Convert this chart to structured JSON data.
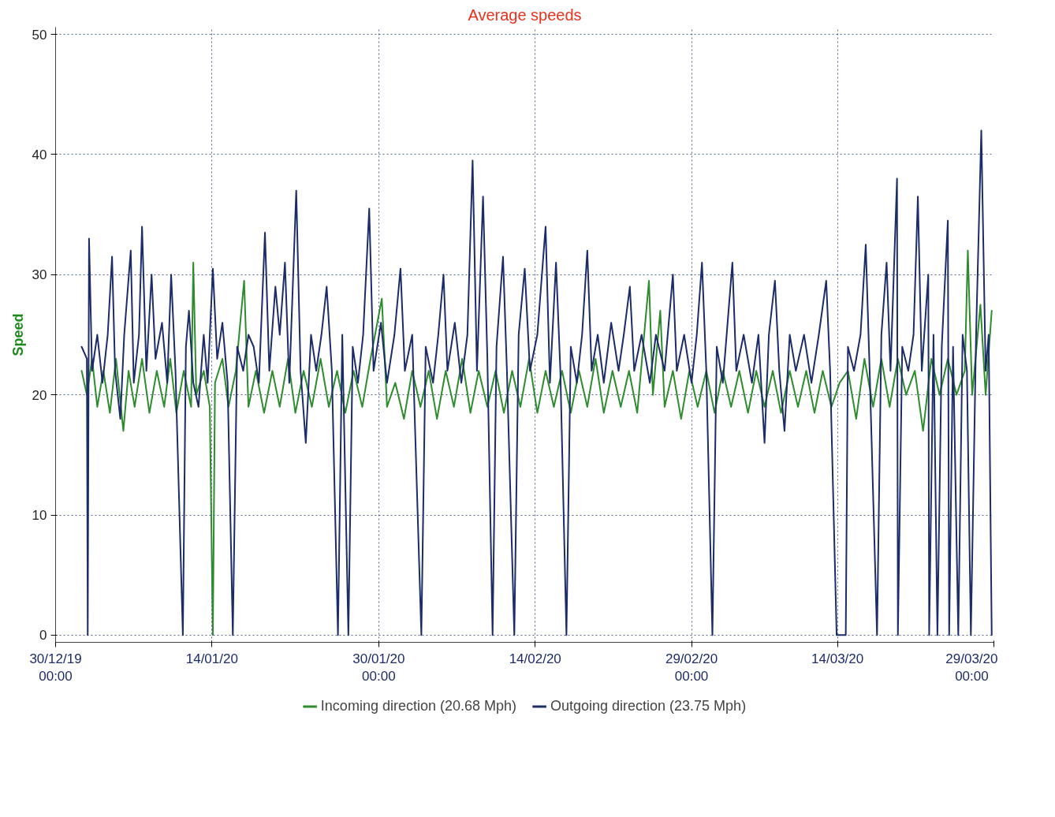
{
  "chart_data": {
    "type": "line",
    "title": "Average speeds",
    "ylabel": "Speed",
    "xlim": [
      "2019-12-30",
      "2020-03-29"
    ],
    "xticks": [
      {
        "value": "2019-12-30",
        "label": "30/12/19\n00:00"
      },
      {
        "value": "2020-01-14",
        "label": "14/01/20"
      },
      {
        "value": "2020-01-30",
        "label": "30/01/20\n00:00"
      },
      {
        "value": "2020-02-14",
        "label": "14/02/20"
      },
      {
        "value": "2020-02-29",
        "label": "29/02/20\n00:00"
      },
      {
        "value": "2020-03-14",
        "label": "14/03/20"
      },
      {
        "value": "2020-03-29",
        "label": "29/03/20\n00:00"
      }
    ],
    "ylim": [
      -0.6,
      50.6
    ],
    "yticks": [
      0,
      10,
      20,
      30,
      40,
      50
    ],
    "grid": true,
    "legend": "bottom",
    "line_style": "solid",
    "marker": "none",
    "series": [
      {
        "name": "Incoming direction (20.68 Mph)",
        "color": "#2e8b2e",
        "x": [
          "2020-01-01T12:00",
          "2020-01-02T00:00",
          "2020-01-02T12:00",
          "2020-01-03T00:00",
          "2020-01-03T14:00",
          "2020-01-04T05:00",
          "2020-01-04T19:00",
          "2020-01-05T12:00",
          "2020-01-06T00:00",
          "2020-01-06T14:00",
          "2020-01-07T07:00",
          "2020-01-08T00:00",
          "2020-01-08T17:00",
          "2020-01-09T10:00",
          "2020-01-10T00:00",
          "2020-01-10T14:00",
          "2020-01-11T07:00",
          "2020-01-12T00:00",
          "2020-01-12T05:00",
          "2020-01-12T12:00",
          "2020-01-13T05:00",
          "2020-01-13T19:00",
          "2020-01-14T02:00",
          "2020-01-14T07:00",
          "2020-01-15T00:00",
          "2020-01-15T14:00",
          "2020-01-16T07:00",
          "2020-01-17T02:00",
          "2020-01-17T12:00",
          "2020-01-18T05:00",
          "2020-01-19T00:00",
          "2020-01-19T19:00",
          "2020-01-20T12:00",
          "2020-01-21T07:00",
          "2020-01-22T00:00",
          "2020-01-22T19:00",
          "2020-01-23T14:00",
          "2020-01-24T10:00",
          "2020-01-25T05:00",
          "2020-01-26T00:00",
          "2020-01-26T19:00",
          "2020-01-27T14:00",
          "2020-01-28T10:00",
          "2020-01-29T05:00",
          "2020-01-30T07:00",
          "2020-01-30T19:00",
          "2020-01-31T14:00",
          "2020-02-01T10:00",
          "2020-02-02T05:00",
          "2020-02-03T00:00",
          "2020-02-03T19:00",
          "2020-02-04T14:00",
          "2020-02-05T10:00",
          "2020-02-06T05:00",
          "2020-02-07T00:00",
          "2020-02-07T19:00",
          "2020-02-08T14:00",
          "2020-02-09T10:00",
          "2020-02-10T05:00",
          "2020-02-11T00:00",
          "2020-02-11T19:00",
          "2020-02-12T14:00",
          "2020-02-13T10:00",
          "2020-02-14T05:00",
          "2020-02-15T00:00",
          "2020-02-15T19:00",
          "2020-02-16T14:00",
          "2020-02-17T10:00",
          "2020-02-18T05:00",
          "2020-02-19T00:00",
          "2020-02-19T19:00",
          "2020-02-20T14:00",
          "2020-02-21T10:00",
          "2020-02-22T05:00",
          "2020-02-23T00:00",
          "2020-02-23T19:00",
          "2020-02-24T22:00",
          "2020-02-25T07:00",
          "2020-02-26T00:00",
          "2020-02-26T10:00",
          "2020-02-27T05:00",
          "2020-02-28T00:00",
          "2020-02-28T19:00",
          "2020-02-29T14:00",
          "2020-03-01T10:00",
          "2020-03-02T05:00",
          "2020-03-03T00:00",
          "2020-03-03T19:00",
          "2020-03-04T14:00",
          "2020-03-05T10:00",
          "2020-03-06T05:00",
          "2020-03-07T00:00",
          "2020-03-07T19:00",
          "2020-03-08T14:00",
          "2020-03-09T10:00",
          "2020-03-10T05:00",
          "2020-03-11T00:00",
          "2020-03-11T19:00",
          "2020-03-12T14:00",
          "2020-03-13T10:00",
          "2020-03-14T05:00",
          "2020-03-15T00:00",
          "2020-03-15T19:00",
          "2020-03-16T14:00",
          "2020-03-17T10:00",
          "2020-03-18T05:00",
          "2020-03-19T00:00",
          "2020-03-19T19:00",
          "2020-03-20T14:00",
          "2020-03-21T10:00",
          "2020-03-22T05:00",
          "2020-03-23T00:00",
          "2020-03-23T19:00",
          "2020-03-24T14:00",
          "2020-03-25T10:00",
          "2020-03-26T05:00",
          "2020-03-26T12:00",
          "2020-03-26T22:00",
          "2020-03-27T17:00",
          "2020-03-28T05:00",
          "2020-03-28T19:00"
        ],
        "values": [
          22,
          20,
          23,
          19,
          22,
          18.5,
          23,
          17,
          22,
          19,
          23,
          18.5,
          22,
          19,
          23,
          18.5,
          22,
          19,
          31,
          20,
          22,
          19,
          0,
          21,
          23,
          19,
          22,
          29.5,
          19,
          22,
          18.5,
          22,
          19,
          23,
          18.5,
          22,
          19,
          23,
          19,
          22,
          18.5,
          22,
          19,
          23,
          28,
          19,
          21,
          18,
          22,
          19,
          22,
          18,
          22,
          19,
          23,
          18.5,
          22,
          19,
          22,
          18.5,
          22,
          19,
          23,
          18.5,
          22,
          19,
          22,
          18.5,
          22,
          19,
          23,
          18.5,
          22,
          19,
          22,
          18.5,
          29.5,
          20,
          27,
          19,
          22,
          18,
          22,
          19,
          22,
          18.5,
          22,
          19,
          22,
          18.5,
          22,
          19,
          22,
          18.5,
          22,
          19,
          22,
          18.5,
          22,
          19,
          21,
          22,
          18,
          23,
          19,
          23,
          19,
          23,
          20,
          22,
          17,
          23,
          20,
          23,
          20,
          22,
          32,
          20,
          27.5,
          20,
          27
        ]
      },
      {
        "name": "Outgoing direction (23.75 Mph)",
        "color": "#1c2c68",
        "x": [
          "2020-01-01T12:00",
          "2020-01-02T00:00",
          "2020-01-02T02:00",
          "2020-01-02T05:00",
          "2020-01-02T12:00",
          "2020-01-03T00:00",
          "2020-01-03T12:00",
          "2020-01-04T00:00",
          "2020-01-04T10:00",
          "2020-01-04T17:00",
          "2020-01-05T05:00",
          "2020-01-05T14:00",
          "2020-01-06T05:00",
          "2020-01-06T12:00",
          "2020-01-07T00:00",
          "2020-01-07T07:00",
          "2020-01-07T17:00",
          "2020-01-08T05:00",
          "2020-01-08T14:00",
          "2020-01-09T05:00",
          "2020-01-09T17:00",
          "2020-01-10T02:00",
          "2020-01-10T12:00",
          "2020-01-11T05:00",
          "2020-01-11T12:00",
          "2020-01-11T19:00",
          "2020-01-12T05:00",
          "2020-01-12T17:00",
          "2020-01-13T05:00",
          "2020-01-13T14:00",
          "2020-01-14T02:00",
          "2020-01-14T12:00",
          "2020-01-15T00:00",
          "2020-01-15T12:00",
          "2020-01-16T00:00",
          "2020-01-16T10:00",
          "2020-01-17T00:00",
          "2020-01-17T12:00",
          "2020-01-18T00:00",
          "2020-01-18T12:00",
          "2020-01-19T02:00",
          "2020-01-19T12:00",
          "2020-01-20T02:00",
          "2020-01-20T12:00",
          "2020-01-21T00:00",
          "2020-01-21T10:00",
          "2020-01-22T02:00",
          "2020-01-22T12:00",
          "2020-01-23T00:00",
          "2020-01-23T12:00",
          "2020-01-24T00:00",
          "2020-01-24T12:00",
          "2020-01-25T00:00",
          "2020-01-25T12:00",
          "2020-01-26T02:00",
          "2020-01-26T12:00",
          "2020-01-27T02:00",
          "2020-01-27T12:00",
          "2020-01-28T00:00",
          "2020-01-28T12:00",
          "2020-01-29T02:00",
          "2020-01-29T12:00",
          "2020-01-30T05:00",
          "2020-01-30T19:00",
          "2020-01-31T12:00",
          "2020-02-01T02:00",
          "2020-02-01T12:00",
          "2020-02-02T05:00",
          "2020-02-03T02:00",
          "2020-02-03T12:00",
          "2020-02-04T05:00",
          "2020-02-04T17:00",
          "2020-02-05T05:00",
          "2020-02-05T14:00",
          "2020-02-06T07:00",
          "2020-02-06T22:00",
          "2020-02-07T12:00",
          "2020-02-08T00:00",
          "2020-02-08T10:00",
          "2020-02-09T00:00",
          "2020-02-09T10:00",
          "2020-02-09T22:00",
          "2020-02-10T07:00",
          "2020-02-10T22:00",
          "2020-02-11T07:00",
          "2020-02-12T00:00",
          "2020-02-12T10:00",
          "2020-02-13T00:00",
          "2020-02-13T12:00",
          "2020-02-14T05:00",
          "2020-02-15T00:00",
          "2020-02-15T10:00",
          "2020-02-16T00:00",
          "2020-02-16T10:00",
          "2020-02-17T00:00",
          "2020-02-17T10:00",
          "2020-02-18T00:00",
          "2020-02-18T12:00",
          "2020-02-19T00:00",
          "2020-02-19T10:00",
          "2020-02-20T00:00",
          "2020-02-20T14:00",
          "2020-02-21T07:00",
          "2020-02-22T00:00",
          "2020-02-22T12:00",
          "2020-02-23T02:00",
          "2020-02-23T12:00",
          "2020-02-24T05:00",
          "2020-02-25T00:00",
          "2020-02-25T14:00",
          "2020-02-26T10:00",
          "2020-02-27T05:00",
          "2020-02-27T14:00",
          "2020-02-28T07:00",
          "2020-02-29T00:00",
          "2020-02-29T12:00",
          "2020-03-01T00:00",
          "2020-03-01T10:00",
          "2020-03-02T00:00",
          "2020-03-02T10:00",
          "2020-03-03T00:00",
          "2020-03-03T22:00",
          "2020-03-04T07:00",
          "2020-03-05T00:00",
          "2020-03-05T19:00",
          "2020-03-06T10:00",
          "2020-03-07T00:00",
          "2020-03-07T10:00",
          "2020-03-08T00:00",
          "2020-03-08T10:00",
          "2020-03-08T22:00",
          "2020-03-09T10:00",
          "2020-03-10T00:00",
          "2020-03-10T19:00",
          "2020-03-11T12:00",
          "2020-03-12T05:00",
          "2020-03-12T22:00",
          "2020-03-13T07:00",
          "2020-03-13T22:00",
          "2020-03-14T19:00",
          "2020-03-15T00:00",
          "2020-03-15T14:00",
          "2020-03-16T05:00",
          "2020-03-16T17:00",
          "2020-03-17T02:00",
          "2020-03-17T19:00",
          "2020-03-18T05:00",
          "2020-03-18T17:00",
          "2020-03-19T02:00",
          "2020-03-19T17:00",
          "2020-03-19T19:00",
          "2020-03-20T05:00",
          "2020-03-20T19:00",
          "2020-03-21T07:00",
          "2020-03-21T17:00",
          "2020-03-22T02:00",
          "2020-03-22T17:00",
          "2020-03-22T19:00",
          "2020-03-23T05:00",
          "2020-03-23T14:00",
          "2020-03-24T00:00",
          "2020-03-24T14:00",
          "2020-03-24T17:00",
          "2020-03-25T02:00",
          "2020-03-25T14:00",
          "2020-03-26T00:00",
          "2020-03-26T10:00",
          "2020-03-26T19:00",
          "2020-03-27T07:00",
          "2020-03-27T19:00",
          "2020-03-28T05:00",
          "2020-03-28T12:00",
          "2020-03-28T19:00"
        ],
        "values": [
          24,
          23,
          0,
          33,
          22,
          25,
          21,
          25,
          31.5,
          22,
          18,
          25,
          32,
          21,
          25,
          34,
          22,
          30,
          23,
          26,
          21,
          30,
          22,
          0,
          24,
          27,
          21,
          19,
          25,
          21,
          30.5,
          23,
          26,
          21,
          0,
          24,
          22,
          25,
          24,
          21,
          33.5,
          22,
          29,
          25,
          31,
          21,
          37,
          22,
          16,
          25,
          22,
          25,
          29,
          22,
          0,
          25,
          0,
          24,
          21,
          25,
          35.5,
          22,
          26,
          21,
          25,
          30.5,
          22,
          25,
          0,
          24,
          21,
          25,
          30,
          22,
          26,
          21,
          25,
          39.5,
          22,
          36.5,
          23,
          0,
          24,
          31.5,
          22,
          0,
          25,
          30.5,
          22,
          25,
          34,
          21,
          31,
          22,
          0,
          24,
          21,
          25,
          32,
          22,
          25,
          21,
          26,
          22,
          25,
          29,
          22,
          25,
          21,
          25,
          22,
          30,
          22,
          25,
          21,
          25,
          31,
          22,
          0,
          24,
          21,
          31,
          22,
          25,
          21,
          25,
          16,
          25,
          29.5,
          22,
          17,
          25,
          22,
          25,
          21,
          25,
          29.5,
          22,
          0,
          0,
          24,
          22,
          25,
          32.5,
          22,
          0,
          25,
          31,
          22,
          38,
          0,
          24,
          22,
          25,
          36.5,
          22,
          30,
          0,
          25,
          0,
          24,
          34.5,
          0,
          24,
          0,
          25,
          22,
          0,
          25,
          42,
          22,
          25,
          0
        ]
      }
    ]
  }
}
